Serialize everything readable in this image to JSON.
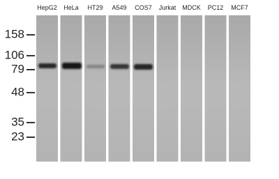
{
  "lanes": [
    "HepG2",
    "HeLa",
    "HT29",
    "A549",
    "COS7",
    "Jurkat",
    "MDCK",
    "PC12",
    "MCF7"
  ],
  "markers": [
    "158",
    "106",
    "79",
    "48",
    "35",
    "23"
  ]
}
